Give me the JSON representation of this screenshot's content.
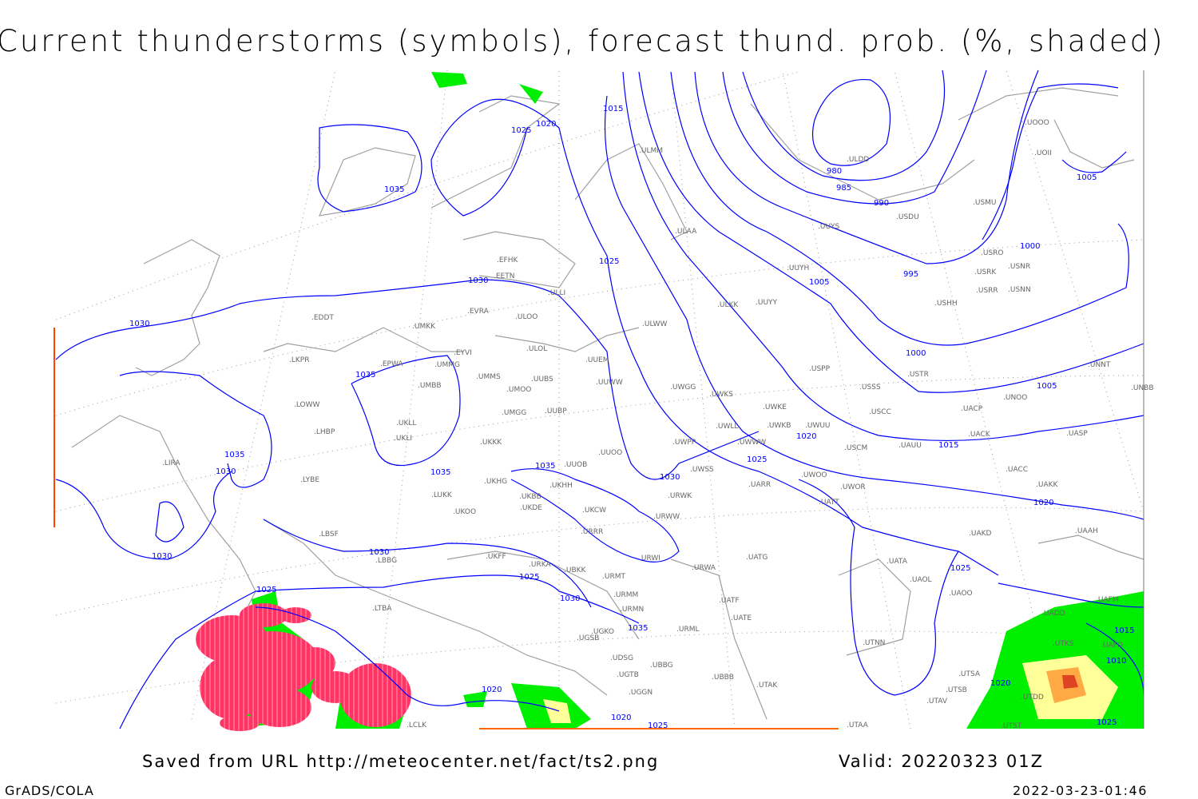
{
  "title": "Current thunderstorms (symbols), forecast thund. prob. (%, shaded)",
  "footer": {
    "saved": "Saved from URL http://meteocenter.net/fact/ts2.png",
    "valid": "Valid: 20220323 01Z",
    "software": "GrADS/COLA",
    "timestamp": "2022-03-23-01:46"
  },
  "colors": {
    "isobar": "#0000ff",
    "coastline": "#a0a0a0",
    "grid": "#999999",
    "thunderstorm_symbol": "#ff3366",
    "prob_low": "#00ee00",
    "prob_mid": "#ffff99",
    "prob_high": "#ffaa44",
    "prob_max": "#dd4422"
  },
  "stations": [
    "ULMM",
    "ULDD",
    "USDU",
    "UUYS",
    "ULAA",
    "USMU",
    "UOOO",
    "UOII",
    "USRO",
    "USRK",
    "USNR",
    "USRR",
    "USNN",
    "USHH",
    "UUYH",
    "UUYY",
    "ULKK",
    "EFHK",
    "EETN",
    "ULLI",
    "EVRA",
    "ULOO",
    "EDDT",
    "UMKK",
    "ULWW",
    "ULOL",
    "EYVI",
    "UUEM",
    "LKPR",
    "EPWA",
    "UMMG",
    "UMMS",
    "UUBS",
    "UMOO",
    "UUWW",
    "UMBB",
    "UWGG",
    "UWKS",
    "USSS",
    "USTR",
    "USPP",
    "UNOO",
    "UNNT",
    "UNBB",
    "LOWW",
    "UKLL",
    "UMGG",
    "UUBP",
    "UWKE",
    "UWKB",
    "UWUU",
    "USCC",
    "UACP",
    "LHBP",
    "UKLI",
    "UWLL",
    "UWWW",
    "UWPP",
    "UACK",
    "UASP",
    "UKKK",
    "UUOO",
    "UAUU",
    "USCM",
    "LIRA",
    "UUOB",
    "UWSS",
    "UACC",
    "LYBE",
    "UKHG",
    "UKBB",
    "UKHH",
    "UWOO",
    "UWOR",
    "UARR",
    "UAKK",
    "LUKK",
    "URWK",
    "UKOO",
    "UKDE",
    "UKCW",
    "UATT",
    "URRR",
    "URWW",
    "UAKD",
    "UAAH",
    "LBSF",
    "UKFF",
    "URKA",
    "UBKK",
    "URWI",
    "UATG",
    "LBBG",
    "URMT",
    "URWA",
    "UATA",
    "UAOL",
    "UAOO",
    "URMM",
    "UATE",
    "UATF",
    "URMN",
    "UGKO",
    "URML",
    "LTBA",
    "UDSG",
    "UGSB",
    "UBBG",
    "UGTB",
    "UBBB",
    "UTAK",
    "UGGN",
    "UTNN",
    "UTAA",
    "LCLK",
    "UTAV",
    "UTSB",
    "UTSA",
    "UTDD",
    "UTST",
    "UADD",
    "UTKS",
    "UAFO",
    "UAFM"
  ],
  "isobar_labels": [
    "1015",
    "1020",
    "1025",
    "1035",
    "980",
    "985",
    "990",
    "995",
    "1000",
    "1005",
    "1005",
    "1000",
    "1005",
    "1025",
    "1030",
    "1030",
    "1035",
    "1020",
    "1015",
    "1025",
    "1020",
    "1035",
    "1030",
    "1035",
    "1035",
    "1030",
    "1030",
    "1030",
    "1025",
    "1025",
    "1030",
    "1035",
    "1025",
    "1020",
    "1020",
    "1025",
    "1015",
    "1010",
    "1020",
    "1025"
  ]
}
